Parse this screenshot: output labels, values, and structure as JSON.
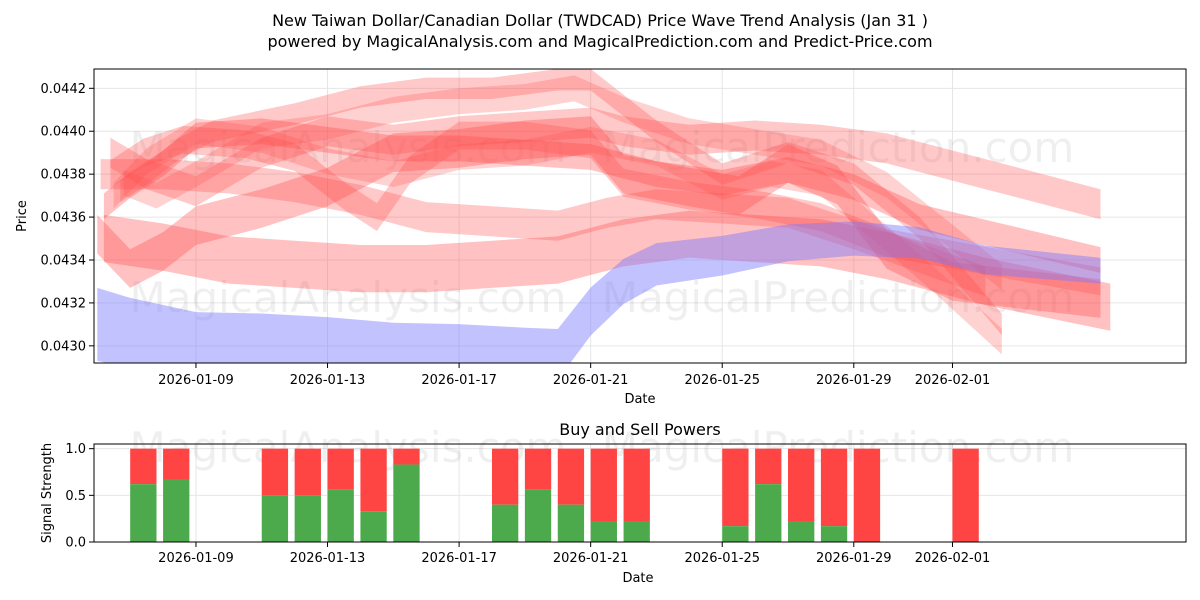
{
  "chart_data": [
    {
      "type": "area",
      "title_line1": "New Taiwan Dollar/Canadian Dollar (TWDCAD) Price Wave Trend Analysis (Jan 31 )",
      "title_line2": "powered by MagicalAnalysis.com and MagicalPrediction.com and Predict-Price.com",
      "xlabel": "Date",
      "ylabel": "Price",
      "xlim_days": [
        -3.1,
        30.1
      ],
      "ylim": [
        0.04292,
        0.04429
      ],
      "x_ticks": [
        {
          "day": 0,
          "label": "2026-01-09"
        },
        {
          "day": 4,
          "label": "2026-01-13"
        },
        {
          "day": 8,
          "label": "2026-01-17"
        },
        {
          "day": 12,
          "label": "2026-01-21"
        },
        {
          "day": 16,
          "label": "2026-01-25"
        },
        {
          "day": 20,
          "label": "2026-01-29"
        },
        {
          "day": 23,
          "label": "2026-02-01"
        }
      ],
      "y_ticks": [
        {
          "value": 0.043,
          "label": "0.0430"
        },
        {
          "value": 0.0432,
          "label": "0.0432"
        },
        {
          "value": 0.0434,
          "label": "0.0434"
        },
        {
          "value": 0.0436,
          "label": "0.0436"
        },
        {
          "value": 0.0438,
          "label": "0.0438"
        },
        {
          "value": 0.044,
          "label": "0.0440"
        },
        {
          "value": 0.0442,
          "label": "0.0442"
        }
      ],
      "red_bands": [
        {
          "name": "wave-1",
          "points": [
            [
              -2.8,
              0.04365
            ],
            [
              -2,
              0.04375
            ],
            [
              -1,
              0.04385
            ],
            [
              0,
              0.04398
            ],
            [
              2,
              0.044
            ],
            [
              4,
              0.04396
            ],
            [
              6,
              0.04392
            ],
            [
              8,
              0.04392
            ],
            [
              10,
              0.0439
            ],
            [
              12,
              0.04388
            ],
            [
              14,
              0.0438
            ],
            [
              16,
              0.04376
            ],
            [
              18,
              0.04382
            ],
            [
              20,
              0.04374
            ],
            [
              22,
              0.0436
            ],
            [
              27.5,
              0.0434
            ]
          ],
          "width": 0.00012,
          "opacity": 0.35
        },
        {
          "name": "wave-2",
          "points": [
            [
              -2.3,
              0.04372
            ],
            [
              -1.5,
              0.0438
            ],
            [
              -0.5,
              0.04392
            ],
            [
              0.5,
              0.044
            ],
            [
              3,
              0.04408
            ],
            [
              5,
              0.04416
            ],
            [
              7,
              0.0442
            ],
            [
              9,
              0.0442
            ],
            [
              11,
              0.04424
            ],
            [
              12,
              0.04424
            ],
            [
              14,
              0.044
            ],
            [
              16,
              0.0438
            ],
            [
              18,
              0.0439
            ],
            [
              20,
              0.0438
            ],
            [
              22,
              0.04355
            ],
            [
              24.5,
              0.0431
            ]
          ],
          "width": 0.0001,
          "opacity": 0.3
        },
        {
          "name": "wave-3",
          "points": [
            [
              -2.2,
              0.04376
            ],
            [
              -1.2,
              0.0437
            ],
            [
              0,
              0.0438
            ],
            [
              2,
              0.04398
            ],
            [
              4,
              0.04402
            ],
            [
              6,
              0.0441
            ],
            [
              8,
              0.04414
            ],
            [
              10,
              0.04416
            ],
            [
              11.5,
              0.0442
            ],
            [
              13,
              0.0441
            ],
            [
              15,
              0.044
            ],
            [
              17,
              0.04395
            ],
            [
              19,
              0.0439
            ],
            [
              21,
              0.04375
            ],
            [
              24.5,
              0.04332
            ]
          ],
          "width": 0.00012,
          "opacity": 0.25
        },
        {
          "name": "wave-4",
          "points": [
            [
              -2.6,
              0.0438
            ],
            [
              -1.6,
              0.0439
            ],
            [
              -0.4,
              0.04396
            ],
            [
              1.5,
              0.04394
            ],
            [
              3,
              0.04388
            ],
            [
              4.5,
              0.0437
            ],
            [
              5.5,
              0.0436
            ],
            [
              6.5,
              0.04382
            ],
            [
              8,
              0.04398
            ],
            [
              10,
              0.04398
            ],
            [
              12,
              0.04394
            ],
            [
              13,
              0.04376
            ],
            [
              15,
              0.0437
            ],
            [
              17,
              0.04366
            ],
            [
              19,
              0.0436
            ],
            [
              21,
              0.04348
            ],
            [
              27.5,
              0.0433
            ]
          ],
          "width": 0.00013,
          "opacity": 0.3
        },
        {
          "name": "wave-5",
          "points": [
            [
              -2.9,
              0.0438
            ],
            [
              -1,
              0.0438
            ],
            [
              1,
              0.04378
            ],
            [
              3,
              0.04374
            ],
            [
              5,
              0.04368
            ],
            [
              7,
              0.0436
            ],
            [
              9,
              0.04358
            ],
            [
              11,
              0.04356
            ],
            [
              12.5,
              0.04362
            ],
            [
              14,
              0.04366
            ],
            [
              16,
              0.04364
            ],
            [
              18,
              0.04362
            ],
            [
              20,
              0.04352
            ],
            [
              24,
              0.0433
            ]
          ],
          "width": 0.00014,
          "opacity": 0.3
        },
        {
          "name": "wave-6",
          "points": [
            [
              -3.0,
              0.04352
            ],
            [
              -2,
              0.04336
            ],
            [
              -1,
              0.04344
            ],
            [
              0,
              0.04356
            ],
            [
              2,
              0.04364
            ],
            [
              4,
              0.04374
            ],
            [
              6,
              0.0439
            ],
            [
              8,
              0.04392
            ],
            [
              10,
              0.04396
            ],
            [
              12,
              0.04398
            ],
            [
              13,
              0.0438
            ],
            [
              15,
              0.04374
            ],
            [
              16.5,
              0.0437
            ],
            [
              18,
              0.04385
            ],
            [
              19.5,
              0.04375
            ],
            [
              21,
              0.04345
            ],
            [
              23,
              0.0433
            ],
            [
              27.5,
              0.04322
            ]
          ],
          "width": 0.00018,
          "opacity": 0.35
        },
        {
          "name": "wave-7",
          "points": [
            [
              -2.8,
              0.0435
            ],
            [
              -1,
              0.04346
            ],
            [
              1,
              0.0434
            ],
            [
              3,
              0.04338
            ],
            [
              5,
              0.04336
            ],
            [
              7,
              0.04336
            ],
            [
              9,
              0.04338
            ],
            [
              11,
              0.0434
            ],
            [
              13,
              0.04348
            ],
            [
              15,
              0.04352
            ],
            [
              17,
              0.0435
            ],
            [
              19,
              0.04348
            ],
            [
              21,
              0.04342
            ],
            [
              24,
              0.0433
            ],
            [
              27.8,
              0.04318
            ]
          ],
          "width": 0.00022,
          "opacity": 0.35
        },
        {
          "name": "wave-8",
          "points": [
            [
              -2.6,
              0.0439
            ],
            [
              -1.5,
              0.0438
            ],
            [
              0,
              0.04372
            ],
            [
              2,
              0.0439
            ],
            [
              4,
              0.044
            ],
            [
              6,
              0.04396
            ],
            [
              8,
              0.044
            ],
            [
              10,
              0.04402
            ],
            [
              12,
              0.04404
            ],
            [
              13,
              0.044
            ],
            [
              15,
              0.04396
            ],
            [
              17,
              0.04398
            ],
            [
              19,
              0.04396
            ],
            [
              21,
              0.04392
            ],
            [
              24,
              0.0438
            ],
            [
              27.5,
              0.04366
            ]
          ],
          "width": 0.00014,
          "opacity": 0.3
        },
        {
          "name": "wave-9",
          "points": [
            [
              -2.5,
              0.0437
            ],
            [
              -1.5,
              0.04386
            ],
            [
              0,
              0.044
            ],
            [
              2,
              0.04396
            ],
            [
              4,
              0.04386
            ],
            [
              6,
              0.0438
            ],
            [
              8,
              0.04388
            ],
            [
              10,
              0.0439
            ],
            [
              12,
              0.04396
            ],
            [
              14,
              0.0439
            ],
            [
              16,
              0.04374
            ],
            [
              17.5,
              0.0438
            ],
            [
              19,
              0.04376
            ],
            [
              21,
              0.0435
            ],
            [
              22.5,
              0.0433
            ],
            [
              24.5,
              0.04302
            ]
          ],
          "width": 0.00012,
          "opacity": 0.25
        }
      ],
      "blue_band": {
        "name": "wave-blue",
        "points": [
          [
            -3.0,
            0.0431
          ],
          [
            -2,
            0.04306
          ],
          [
            0,
            0.043
          ],
          [
            2,
            0.043
          ],
          [
            4,
            0.04299
          ],
          [
            6,
            0.04297
          ],
          [
            8,
            0.04297
          ],
          [
            10,
            0.04296
          ],
          [
            11,
            0.04296
          ],
          [
            12,
            0.04316
          ],
          [
            13,
            0.0433
          ],
          [
            14,
            0.04338
          ],
          [
            16,
            0.04342
          ],
          [
            18,
            0.04348
          ],
          [
            20,
            0.0435
          ],
          [
            22,
            0.04348
          ],
          [
            24,
            0.0434
          ],
          [
            27.5,
            0.04335
          ]
        ],
        "width_left": 0.00034,
        "width_right": 0.00012,
        "opacity": 0.45
      }
    },
    {
      "type": "bar",
      "title": "Buy and Sell Powers",
      "xlabel": "Date",
      "ylabel": "Signal Strength",
      "xlim_days": [
        -3.1,
        30.1
      ],
      "ylim": [
        0,
        1.05
      ],
      "x_ticks": [
        {
          "day": 0,
          "label": "2026-01-09"
        },
        {
          "day": 4,
          "label": "2026-01-13"
        },
        {
          "day": 8,
          "label": "2026-01-17"
        },
        {
          "day": 12,
          "label": "2026-01-21"
        },
        {
          "day": 16,
          "label": "2026-01-25"
        },
        {
          "day": 20,
          "label": "2026-01-29"
        },
        {
          "day": 23,
          "label": "2026-02-01"
        }
      ],
      "y_ticks": [
        {
          "value": 0.0,
          "label": "0.0"
        },
        {
          "value": 0.5,
          "label": "0.5"
        },
        {
          "value": 1.0,
          "label": "1.0"
        }
      ],
      "bars": [
        {
          "day": -1.6,
          "buy": 0.62
        },
        {
          "day": -0.6,
          "buy": 0.67
        },
        {
          "day": 2.4,
          "buy": 0.5
        },
        {
          "day": 3.4,
          "buy": 0.5
        },
        {
          "day": 4.4,
          "buy": 0.56
        },
        {
          "day": 5.4,
          "buy": 0.33
        },
        {
          "day": 6.4,
          "buy": 0.83
        },
        {
          "day": 9.4,
          "buy": 0.4
        },
        {
          "day": 10.4,
          "buy": 0.56
        },
        {
          "day": 11.4,
          "buy": 0.4
        },
        {
          "day": 12.4,
          "buy": 0.22
        },
        {
          "day": 13.4,
          "buy": 0.22
        },
        {
          "day": 16.4,
          "buy": 0.17
        },
        {
          "day": 17.4,
          "buy": 0.62
        },
        {
          "day": 18.4,
          "buy": 0.22
        },
        {
          "day": 19.4,
          "buy": 0.17
        },
        {
          "day": 20.4,
          "buy": 0.0
        },
        {
          "day": 23.4,
          "buy": 0.0
        }
      ],
      "buy_color": "#4caa4c",
      "sell_color": "#ff4444"
    }
  ],
  "watermarks": [
    "MagicalAnalysis.com",
    "MagicalPrediction.com"
  ],
  "colors": {
    "red_band": "#ff4d4d",
    "blue_band": "#7777ff",
    "grid": "#e6e6e6"
  }
}
